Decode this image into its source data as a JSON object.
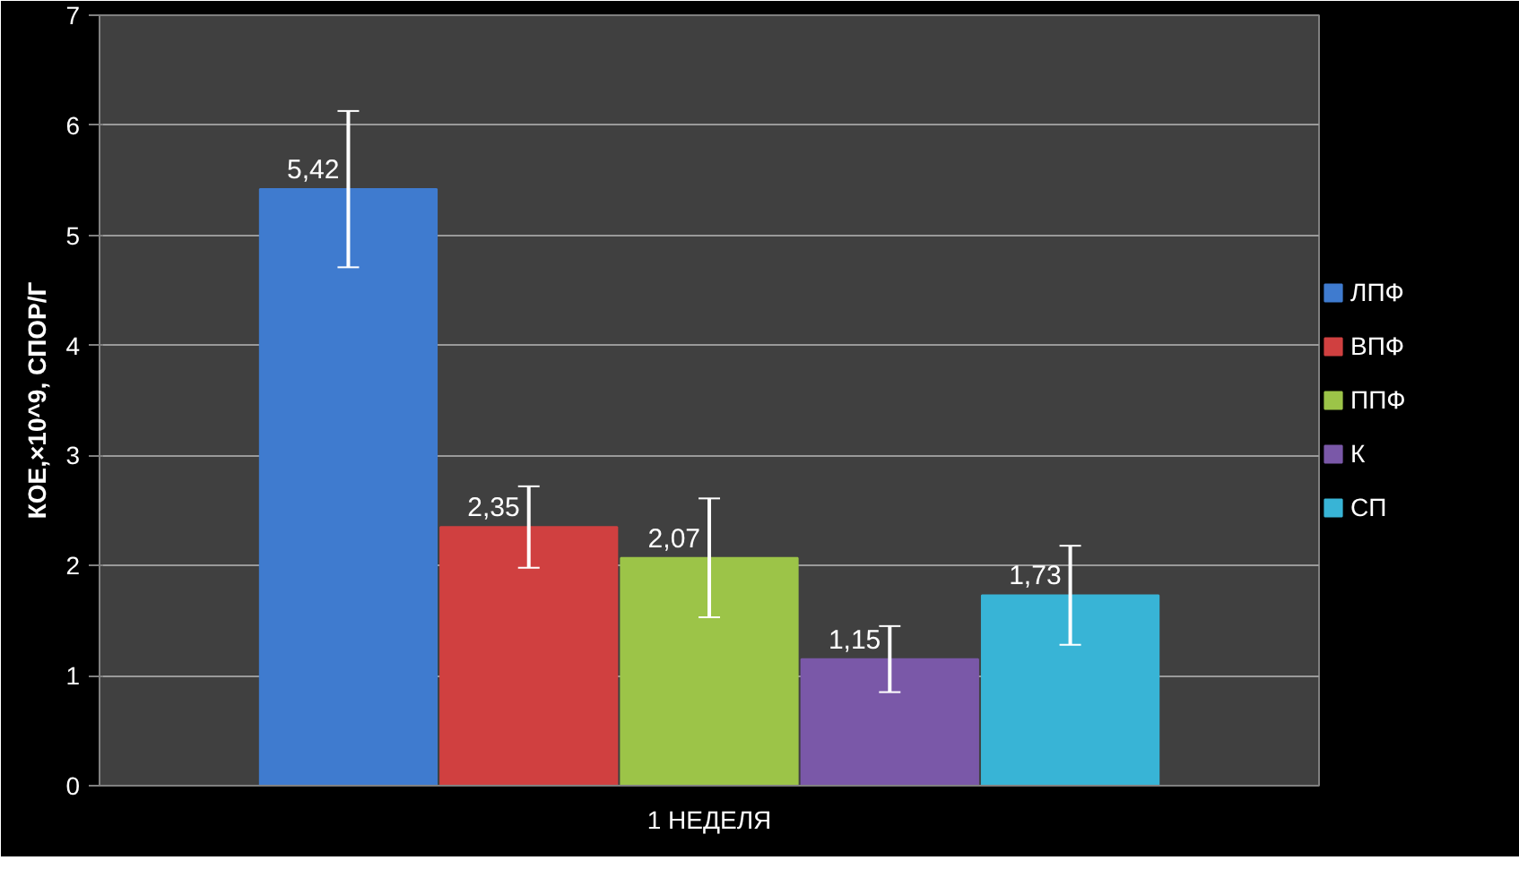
{
  "chart_data": {
    "type": "bar",
    "categories": [
      "1 НЕДЕЛЯ"
    ],
    "ylabel": "КОЕ,×10^9, СПОР/Г",
    "series": [
      {
        "name": "ЛПФ",
        "color": "#3f7bcf",
        "values": [
          5.42
        ],
        "errors": [
          0.71
        ],
        "value_labels": [
          "5,42"
        ]
      },
      {
        "name": "ВПФ",
        "color": "#d04040",
        "values": [
          2.35
        ],
        "errors": [
          0.37
        ],
        "value_labels": [
          "2,35"
        ]
      },
      {
        "name": "ППФ",
        "color": "#9cc448",
        "values": [
          2.07
        ],
        "errors": [
          0.54
        ],
        "value_labels": [
          "2,07"
        ]
      },
      {
        "name": "К",
        "color": "#7a58a8",
        "values": [
          1.15
        ],
        "errors": [
          0.3
        ],
        "value_labels": [
          "1,15"
        ]
      },
      {
        "name": "СП",
        "color": "#38b4d6",
        "values": [
          1.73
        ],
        "errors": [
          0.45
        ],
        "value_labels": [
          "1,73"
        ]
      }
    ],
    "data_labels": true,
    "ylim": [
      0,
      7
    ],
    "yticks": [
      0,
      1,
      2,
      3,
      4,
      5,
      6,
      7
    ],
    "grid": "y",
    "legend": "right"
  }
}
